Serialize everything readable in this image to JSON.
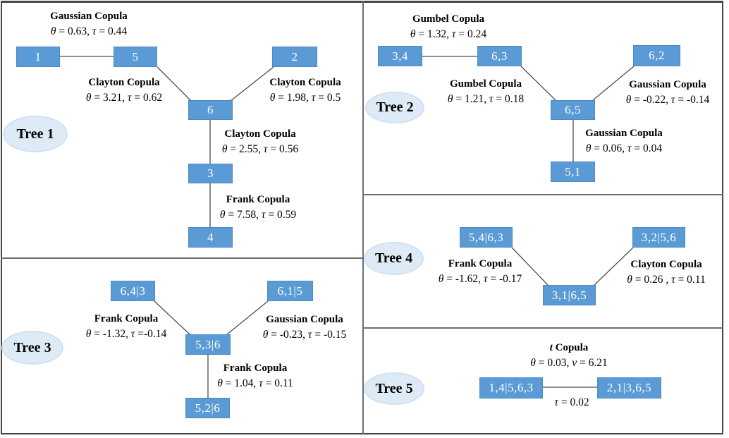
{
  "figure": {
    "description": "Vine copula tree diagram with five trees",
    "colors": {
      "node_fill": "#5b9bd5",
      "node_text": "#ffffff",
      "badge_fill": "#deeaf6",
      "badge_border": "#cfe2f3",
      "edge_line": "#4d4d4d",
      "panel_border": "#474747"
    }
  },
  "trees": [
    {
      "label": "Tree 1",
      "nodes": [
        "1",
        "5",
        "2",
        "6",
        "3",
        "4"
      ],
      "edges": [
        {
          "between": "1-5",
          "copula": "Gaussian Copula",
          "params": "θ = 0.63, τ = 0.44"
        },
        {
          "between": "5-6",
          "copula": "Clayton Copula",
          "params": "θ = 3.21, τ = 0.62"
        },
        {
          "between": "2-6",
          "copula": "Clayton Copula",
          "params": "θ = 1.98, τ = 0.5"
        },
        {
          "between": "6-3",
          "copula": "Clayton Copula",
          "params": "θ = 2.55, τ = 0.56"
        },
        {
          "between": "3-4",
          "copula": "Frank Copula",
          "params": "θ = 7.58, τ = 0.59"
        }
      ]
    },
    {
      "label": "Tree 2",
      "nodes": [
        "3,4",
        "6,3",
        "6,2",
        "6,5",
        "5,1"
      ],
      "edges": [
        {
          "between": "3,4-6,3",
          "copula": "Gumbel Copula",
          "params": "θ = 1.32, τ = 0.24"
        },
        {
          "between": "6,3-6,5",
          "copula": "Gumbel Copula",
          "params": "θ = 1.21, τ = 0.18"
        },
        {
          "between": "6,2-6,5",
          "copula": "Gaussian Copula",
          "params": "θ = -0.22, τ = -0.14"
        },
        {
          "between": "6,5-5,1",
          "copula": "Gaussian Copula",
          "params": "θ = 0.06, τ = 0.04"
        }
      ]
    },
    {
      "label": "Tree 3",
      "nodes": [
        "6,4|3",
        "6,1|5",
        "5,3|6",
        "5,2|6"
      ],
      "edges": [
        {
          "between": "6,4|3-5,3|6",
          "copula": "Frank Copula",
          "params": "θ = -1.32, τ =-0.14"
        },
        {
          "between": "6,1|5-5,3|6",
          "copula": "Gaussian Copula",
          "params": "θ = -0.23, τ = -0.15"
        },
        {
          "between": "5,3|6-5,2|6",
          "copula": "Frank Copula",
          "params": "θ = 1.04, τ = 0.11"
        }
      ]
    },
    {
      "label": "Tree 4",
      "nodes": [
        "5,4|6,3",
        "3,2|5,6",
        "3,1|6,5"
      ],
      "edges": [
        {
          "between": "5,4|6,3-3,1|6,5",
          "copula": "Frank Copula",
          "params": "θ = -1.62, τ = -0.17"
        },
        {
          "between": "3,2|5,6-3,1|6,5",
          "copula": "Clayton Copula",
          "params": "θ = 0.26 , τ = 0.11"
        }
      ]
    },
    {
      "label": "Tree 5",
      "nodes": [
        "1,4|5,6,3",
        "2,1|3,6,5"
      ],
      "edges": [
        {
          "between": "1,4|5,6,3-2,1|3,6,5",
          "copula": "t Copula",
          "params": "θ = 0.03, ν = 6.21",
          "tau_below": "τ = 0.02"
        }
      ]
    }
  ]
}
